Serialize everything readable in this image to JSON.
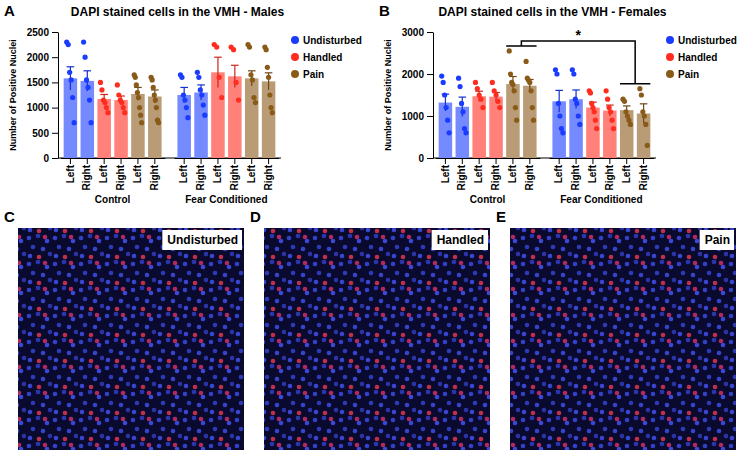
{
  "chart_data": [
    {
      "type": "bar",
      "panel_label": "A",
      "title": "DAPI stained cells in the VMH - Males",
      "y_label": "Number of Positive Nuclei",
      "groups": [
        "Control",
        "Fear Conditioned"
      ],
      "sides": [
        "Left",
        "Right"
      ],
      "ylim": [
        0,
        2500
      ],
      "yticks": [
        0,
        500,
        1000,
        1500,
        2000,
        2500
      ],
      "legend": "right",
      "series": [
        {
          "name": "Undisturbed",
          "color": "#1a3cff",
          "values": [
            1580,
            1530,
            1250,
            1300
          ],
          "errors": [
            230,
            200,
            150,
            150
          ],
          "points": [
            [
              2300,
              2250,
              1700,
              1550,
              1200,
              700
            ],
            [
              2300,
              2000,
              1550,
              1400,
              1150,
              700
            ],
            [
              1650,
              1600,
              1250,
              1150,
              1000,
              800
            ],
            [
              1700,
              1600,
              1350,
              1250,
              1050,
              850
            ]
          ]
        },
        {
          "name": "Handled",
          "color": "#ff2d1f",
          "values": [
            1170,
            1150,
            1700,
            1620
          ],
          "errors": [
            90,
            80,
            300,
            220
          ],
          "points": [
            [
              1500,
              1350,
              1150,
              1100,
              1000,
              900
            ],
            [
              1450,
              1250,
              1150,
              1100,
              1000,
              900
            ],
            [
              2250,
              2200,
              1600,
              1200
            ],
            [
              2200,
              2150,
              1500,
              1150
            ]
          ]
        },
        {
          "name": "Pain",
          "color": "#8a5a19",
          "values": [
            1270,
            1220,
            1580,
            1520
          ],
          "errors": [
            130,
            130,
            150,
            170
          ],
          "points": [
            [
              1650,
              1600,
              1450,
              1300,
              1200,
              1000,
              850,
              700
            ],
            [
              1600,
              1550,
              1400,
              1250,
              1150,
              1000,
              750,
              700
            ],
            [
              2250,
              2200,
              1650,
              1550,
              1200,
              1100
            ],
            [
              2200,
              2150,
              1800,
              1600,
              1250,
              1000,
              900
            ]
          ]
        }
      ]
    },
    {
      "type": "bar",
      "panel_label": "B",
      "title": "DAPI stained cells in the VMH - Females",
      "y_label": "Number of Positive Nuclei",
      "groups": [
        "Control",
        "Fear Conditioned"
      ],
      "sides": [
        "Left",
        "Right"
      ],
      "ylim": [
        0,
        3000
      ],
      "yticks": [
        0,
        1000,
        2000,
        3000
      ],
      "legend": "right",
      "series": [
        {
          "name": "Undisturbed",
          "color": "#1a3cff",
          "values": [
            1320,
            1220,
            1350,
            1400
          ],
          "errors": [
            200,
            230,
            260,
            220
          ],
          "points": [
            [
              1950,
              1800,
              1500,
              1200,
              900,
              600
            ],
            [
              1900,
              1700,
              1300,
              1100,
              700,
              600
            ],
            [
              2100,
              2000,
              1300,
              1000,
              700,
              600
            ],
            [
              2100,
              2000,
              1400,
              1300,
              1000,
              800
            ]
          ]
        },
        {
          "name": "Handled",
          "color": "#ff2d1f",
          "values": [
            1470,
            1460,
            1200,
            1130
          ],
          "errors": [
            120,
            100,
            130,
            130
          ],
          "points": [
            [
              1800,
              1650,
              1500,
              1400,
              1200
            ],
            [
              1800,
              1600,
              1500,
              1350,
              1200
            ],
            [
              1600,
              1550,
              1300,
              1200,
              1100,
              900,
              700
            ],
            [
              1600,
              1400,
              1200,
              1100,
              900,
              700
            ]
          ]
        },
        {
          "name": "Pain",
          "color": "#8a5a19",
          "values": [
            1760,
            1720,
            1140,
            1060
          ],
          "errors": [
            180,
            150,
            100,
            230
          ],
          "points": [
            [
              2550,
              2000,
              1800,
              1750,
              1600,
              1200,
              900
            ],
            [
              2300,
              1900,
              1850,
              1800,
              1600,
              1200,
              900
            ],
            [
              1400,
              1350,
              1100,
              1000,
              900,
              800
            ],
            [
              1650,
              1500,
              1100,
              1000,
              800,
              300
            ]
          ]
        }
      ],
      "significance": [
        {
          "label": "*",
          "from": {
            "group": 0,
            "series": 2
          },
          "to": {
            "group": 1,
            "series": 2
          }
        }
      ]
    }
  ],
  "images": [
    {
      "panel_label": "C",
      "label": "Undisturbed"
    },
    {
      "panel_label": "D",
      "label": "Handled"
    },
    {
      "panel_label": "E",
      "label": "Pain"
    }
  ]
}
